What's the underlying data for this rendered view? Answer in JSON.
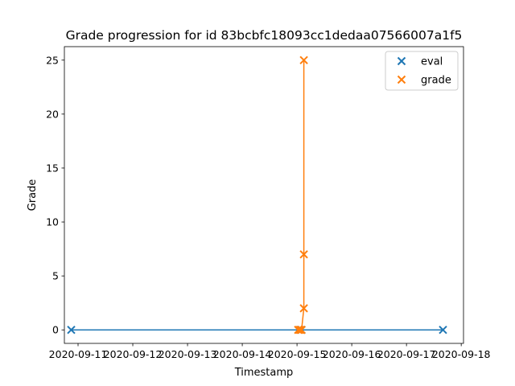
{
  "chart_data": {
    "type": "line",
    "title": "Grade progression for id 83bcbfc18093cc1dedaa07566007a1f5",
    "xlabel": "Timestamp",
    "ylabel": "Grade",
    "x_tick_labels": [
      "2020-09-11",
      "2020-09-12",
      "2020-09-13",
      "2020-09-14",
      "2020-09-15",
      "2020-09-16",
      "2020-09-17",
      "2020-09-18"
    ],
    "x_ticks": [
      "2020-09-11",
      "2020-09-12",
      "2020-09-13",
      "2020-09-14",
      "2020-09-15",
      "2020-09-16",
      "2020-09-17",
      "2020-09-18"
    ],
    "xlim": [
      "2020-09-10T18:00",
      "2020-09-18T01:00"
    ],
    "ylim": [
      -1.25,
      26.25
    ],
    "y_ticks": [
      0,
      5,
      10,
      15,
      20,
      25
    ],
    "y_tick_labels": [
      "0",
      "5",
      "10",
      "15",
      "20",
      "25"
    ],
    "marker": "x",
    "legend_position": "top-right",
    "series": [
      {
        "name": "eval",
        "color": "#1f77b4",
        "points": [
          {
            "x": "2020-09-10T21:00",
            "y": 0
          },
          {
            "x": "2020-09-15T02:00",
            "y": 0
          },
          {
            "x": "2020-09-17T16:00",
            "y": 0
          }
        ]
      },
      {
        "name": "grade",
        "color": "#ff7f0e",
        "points": [
          {
            "x": "2020-09-15T00:30",
            "y": 0
          },
          {
            "x": "2020-09-15T01:00",
            "y": 0
          },
          {
            "x": "2020-09-15T01:30",
            "y": 0
          },
          {
            "x": "2020-09-15T02:00",
            "y": 0
          },
          {
            "x": "2020-09-15T03:00",
            "y": 2
          },
          {
            "x": "2020-09-15T03:00",
            "y": 7
          },
          {
            "x": "2020-09-15T03:00",
            "y": 25
          }
        ]
      }
    ]
  }
}
